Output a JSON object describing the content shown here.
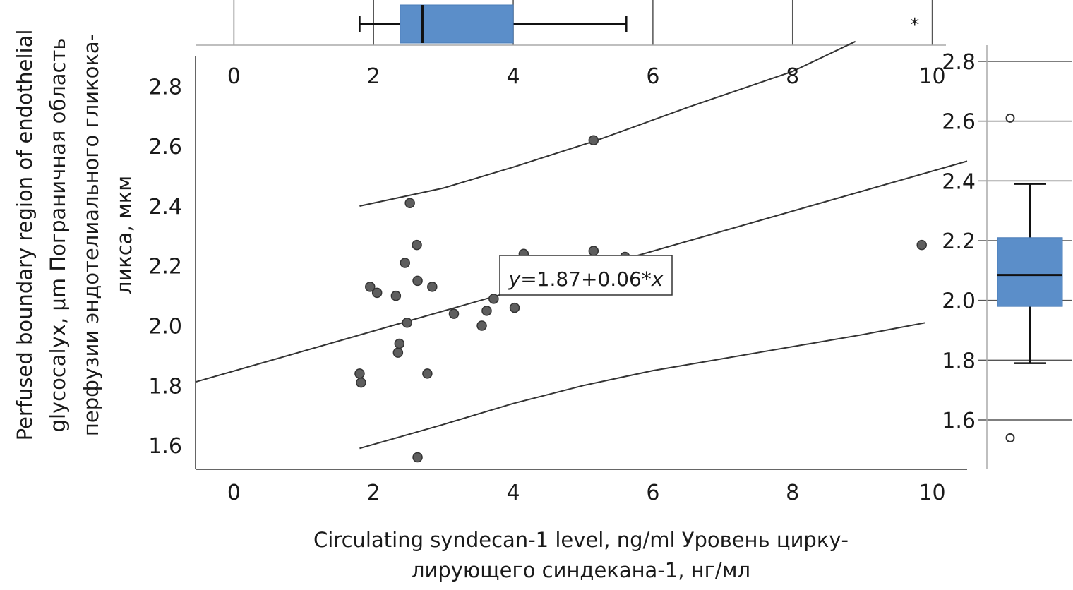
{
  "chart_data": {
    "type": "scatter",
    "xlabel_lines": [
      "Circulating syndecan-1 level, ng/ml Уровень цирку-",
      "лирующего синдекана-1, нг/мл"
    ],
    "ylabel_lines": [
      "Perfused boundary region of endothelial",
      "glycocalyx, μm Пограничная область",
      "перфузии эндотелиального гликока-",
      "ликса, мкм"
    ],
    "xlim": [
      -0.55,
      10.5
    ],
    "ylim": [
      1.52,
      2.9
    ],
    "x_ticks": [
      "0",
      "2",
      "4",
      "6",
      "8",
      "10"
    ],
    "y_ticks": [
      "1.6",
      "1.8",
      "2.0",
      "2.2",
      "2.4",
      "2.6",
      "2.8"
    ],
    "points": [
      {
        "x": 1.8,
        "y": 1.84
      },
      {
        "x": 1.82,
        "y": 1.81
      },
      {
        "x": 1.95,
        "y": 2.13
      },
      {
        "x": 2.05,
        "y": 2.11
      },
      {
        "x": 2.32,
        "y": 2.1
      },
      {
        "x": 2.35,
        "y": 1.91
      },
      {
        "x": 2.37,
        "y": 1.94
      },
      {
        "x": 2.45,
        "y": 2.21
      },
      {
        "x": 2.48,
        "y": 2.01
      },
      {
        "x": 2.52,
        "y": 2.41
      },
      {
        "x": 2.62,
        "y": 2.27
      },
      {
        "x": 2.63,
        "y": 2.15
      },
      {
        "x": 2.63,
        "y": 1.56
      },
      {
        "x": 2.77,
        "y": 1.84
      },
      {
        "x": 2.84,
        "y": 2.13
      },
      {
        "x": 3.15,
        "y": 2.04
      },
      {
        "x": 3.55,
        "y": 2.0
      },
      {
        "x": 3.62,
        "y": 2.05
      },
      {
        "x": 3.72,
        "y": 2.09
      },
      {
        "x": 4.02,
        "y": 2.06
      },
      {
        "x": 4.15,
        "y": 2.24
      },
      {
        "x": 5.15,
        "y": 2.25
      },
      {
        "x": 5.15,
        "y": 2.62
      },
      {
        "x": 5.6,
        "y": 2.23
      },
      {
        "x": 9.85,
        "y": 2.27
      }
    ],
    "regression": {
      "label_prefix": "y",
      "label_rest": "=1.87+0.06*",
      "label_suffix": "x",
      "intercept": 1.87,
      "slope": 0.06
    },
    "band_upper": [
      [
        1.8,
        2.4
      ],
      [
        3.0,
        2.46
      ],
      [
        4.0,
        2.53
      ],
      [
        5.2,
        2.62
      ],
      [
        6.5,
        2.73
      ],
      [
        8.0,
        2.85
      ],
      [
        8.9,
        2.95
      ]
    ],
    "band_lower": [
      [
        1.8,
        1.59
      ],
      [
        3.0,
        1.67
      ],
      [
        4.0,
        1.74
      ],
      [
        5.0,
        1.8
      ],
      [
        6.0,
        1.85
      ],
      [
        7.5,
        1.91
      ],
      [
        9.0,
        1.97
      ],
      [
        9.9,
        2.01
      ]
    ],
    "x_boxplot": {
      "min": 1.8,
      "q1": 2.38,
      "median": 2.7,
      "q3": 4.0,
      "max": 5.62,
      "extreme_label": "*",
      "extreme": 9.85
    },
    "y_boxplot": {
      "min": 1.79,
      "q1": 1.98,
      "median": 2.085,
      "q3": 2.21,
      "max": 2.39,
      "outliers": [
        2.61,
        1.54
      ]
    },
    "y_box_ticks": [
      "1.6",
      "1.8",
      "2.0",
      "2.2",
      "2.4",
      "2.6",
      "2.8"
    ],
    "colors": {
      "box": "#5b8ec9",
      "point": "#5e5e5e",
      "line": "#333333",
      "axis": "#666666"
    }
  }
}
